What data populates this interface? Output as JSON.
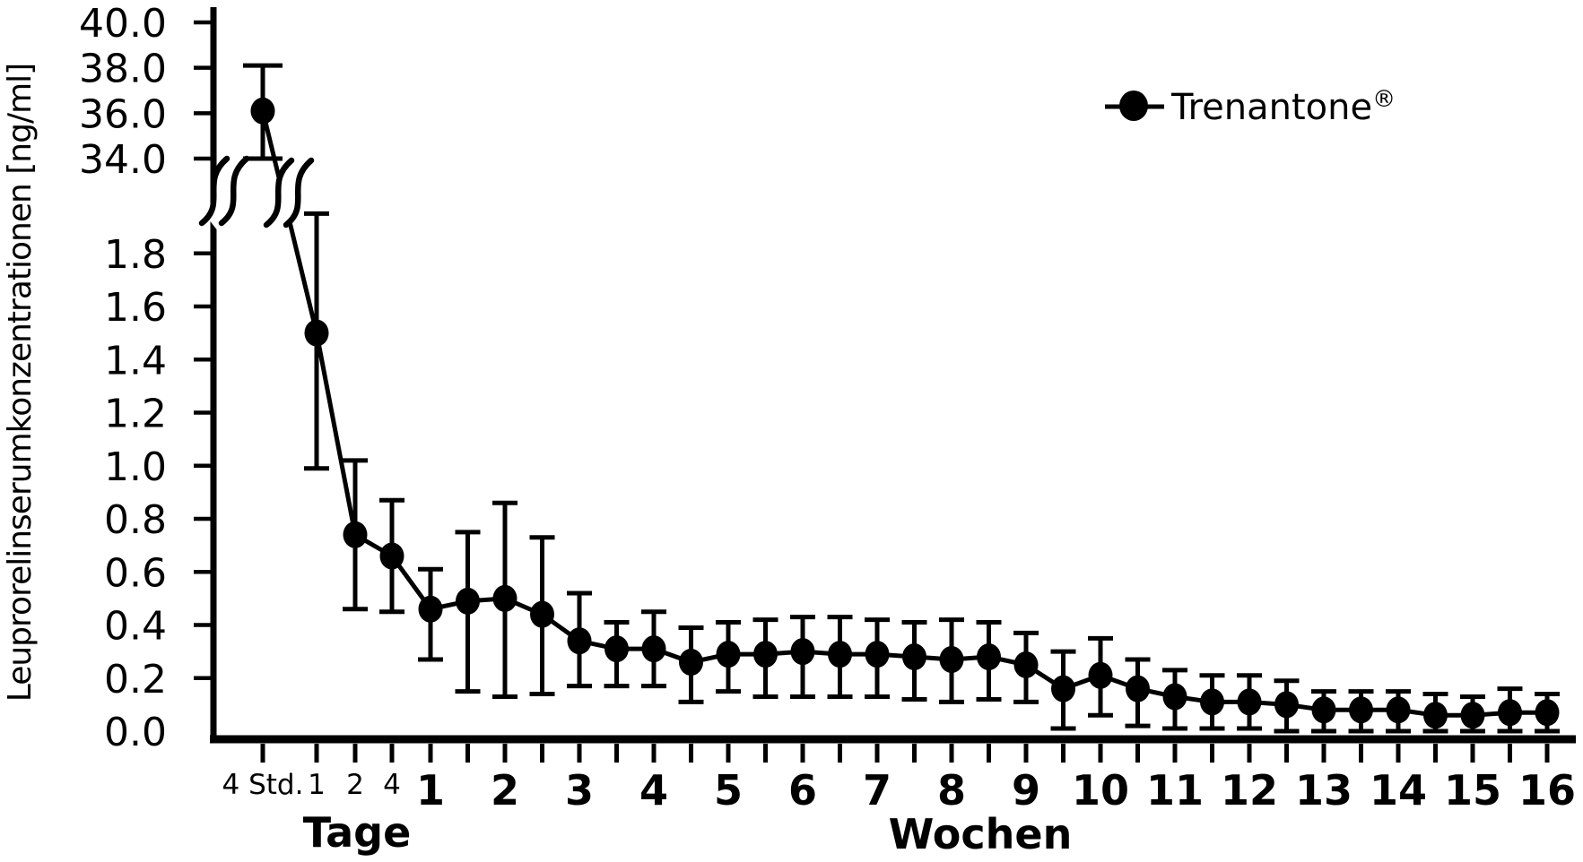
{
  "figure": {
    "background": "#ffffff",
    "ink": "#000000",
    "kind": "pharmacokinetic concentration-time curve with broken y-axis"
  },
  "y_axis": {
    "title": "Leuprorelinserumkonzentrationen [ng/ml]",
    "upper_tick_labels": [
      "40.0",
      "38.0",
      "36.0",
      "34.0"
    ],
    "lower_tick_labels": [
      "1.8",
      "1.6",
      "1.4",
      "1.2",
      "1.0",
      "0.8",
      "0.6",
      "0.4",
      "0.2",
      "0.0"
    ],
    "break_between": [
      2.0,
      34.0
    ]
  },
  "x_axis": {
    "day_section_label": "Tage",
    "week_section_label": "Wochen",
    "day_tick_labels": [
      "4 Std.",
      "1",
      "2",
      "4"
    ],
    "week_tick_labels": [
      "1",
      "2",
      "3",
      "4",
      "5",
      "6",
      "7",
      "8",
      "9",
      "10",
      "11",
      "12",
      "13",
      "14",
      "15",
      "16"
    ]
  },
  "legend": {
    "label": "Trenantone",
    "registered_mark": "®"
  },
  "chart_data": {
    "type": "line",
    "title": "",
    "xlabel_sections": [
      "Tage",
      "Wochen"
    ],
    "ylabel": "Leuprorelinserumkonzentrationen [ng/ml]",
    "y_unit": "ng/ml",
    "grid": false,
    "legend_position": "upper right",
    "marker": "filled-circle",
    "error_bars": "plus-minus, capped",
    "y_axis_segments": {
      "lower_range": [
        0.0,
        2.0
      ],
      "upper_range": [
        34.0,
        40.0
      ]
    },
    "series": [
      {
        "name": "Trenantone®",
        "points": [
          {
            "time": "4 Std.",
            "axis": "days",
            "slot": 0,
            "value": 36.1,
            "lo": 34.0,
            "hi": 38.1
          },
          {
            "time": "1",
            "axis": "days",
            "slot": 1,
            "value": 1.5,
            "lo": 0.99,
            "hi": 1.95
          },
          {
            "time": "2",
            "axis": "days",
            "slot": 2,
            "value": 0.74,
            "lo": 0.46,
            "hi": 1.02
          },
          {
            "time": "4",
            "axis": "days",
            "slot": 3,
            "value": 0.66,
            "lo": 0.45,
            "hi": 0.87
          },
          {
            "time": "1",
            "axis": "weeks",
            "week": 1,
            "value": 0.46,
            "lo": 0.27,
            "hi": 0.61
          },
          {
            "time": "1.5",
            "axis": "weeks",
            "week": 1.5,
            "value": 0.49,
            "lo": 0.15,
            "hi": 0.75
          },
          {
            "time": "2",
            "axis": "weeks",
            "week": 2,
            "value": 0.5,
            "lo": 0.13,
            "hi": 0.86
          },
          {
            "time": "2.5",
            "axis": "weeks",
            "week": 2.5,
            "value": 0.44,
            "lo": 0.14,
            "hi": 0.73
          },
          {
            "time": "3",
            "axis": "weeks",
            "week": 3,
            "value": 0.34,
            "lo": 0.17,
            "hi": 0.52
          },
          {
            "time": "3.5",
            "axis": "weeks",
            "week": 3.5,
            "value": 0.31,
            "lo": 0.17,
            "hi": 0.41
          },
          {
            "time": "4",
            "axis": "weeks",
            "week": 4,
            "value": 0.31,
            "lo": 0.17,
            "hi": 0.45
          },
          {
            "time": "4.5",
            "axis": "weeks",
            "week": 4.5,
            "value": 0.26,
            "lo": 0.11,
            "hi": 0.39
          },
          {
            "time": "5",
            "axis": "weeks",
            "week": 5,
            "value": 0.29,
            "lo": 0.15,
            "hi": 0.41
          },
          {
            "time": "5.5",
            "axis": "weeks",
            "week": 5.5,
            "value": 0.29,
            "lo": 0.13,
            "hi": 0.42
          },
          {
            "time": "6",
            "axis": "weeks",
            "week": 6,
            "value": 0.3,
            "lo": 0.13,
            "hi": 0.43
          },
          {
            "time": "6.5",
            "axis": "weeks",
            "week": 6.5,
            "value": 0.29,
            "lo": 0.13,
            "hi": 0.43
          },
          {
            "time": "7",
            "axis": "weeks",
            "week": 7,
            "value": 0.29,
            "lo": 0.13,
            "hi": 0.42
          },
          {
            "time": "7.5",
            "axis": "weeks",
            "week": 7.5,
            "value": 0.28,
            "lo": 0.12,
            "hi": 0.41
          },
          {
            "time": "8",
            "axis": "weeks",
            "week": 8,
            "value": 0.27,
            "lo": 0.11,
            "hi": 0.42
          },
          {
            "time": "8.5",
            "axis": "weeks",
            "week": 8.5,
            "value": 0.28,
            "lo": 0.12,
            "hi": 0.41
          },
          {
            "time": "9",
            "axis": "weeks",
            "week": 9,
            "value": 0.25,
            "lo": 0.11,
            "hi": 0.37
          },
          {
            "time": "9.5",
            "axis": "weeks",
            "week": 9.5,
            "value": 0.16,
            "lo": 0.01,
            "hi": 0.3
          },
          {
            "time": "10",
            "axis": "weeks",
            "week": 10,
            "value": 0.21,
            "lo": 0.06,
            "hi": 0.35
          },
          {
            "time": "10.5",
            "axis": "weeks",
            "week": 10.5,
            "value": 0.16,
            "lo": 0.02,
            "hi": 0.27
          },
          {
            "time": "11",
            "axis": "weeks",
            "week": 11,
            "value": 0.13,
            "lo": 0.01,
            "hi": 0.23
          },
          {
            "time": "11.5",
            "axis": "weeks",
            "week": 11.5,
            "value": 0.11,
            "lo": 0.01,
            "hi": 0.21
          },
          {
            "time": "12",
            "axis": "weeks",
            "week": 12,
            "value": 0.11,
            "lo": 0.01,
            "hi": 0.21
          },
          {
            "time": "12.5",
            "axis": "weeks",
            "week": 12.5,
            "value": 0.1,
            "lo": 0.0,
            "hi": 0.19
          },
          {
            "time": "13",
            "axis": "weeks",
            "week": 13,
            "value": 0.08,
            "lo": 0.0,
            "hi": 0.15
          },
          {
            "time": "13.5",
            "axis": "weeks",
            "week": 13.5,
            "value": 0.08,
            "lo": 0.0,
            "hi": 0.15
          },
          {
            "time": "14",
            "axis": "weeks",
            "week": 14,
            "value": 0.08,
            "lo": 0.0,
            "hi": 0.15
          },
          {
            "time": "14.5",
            "axis": "weeks",
            "week": 14.5,
            "value": 0.06,
            "lo": 0.0,
            "hi": 0.14
          },
          {
            "time": "15",
            "axis": "weeks",
            "week": 15,
            "value": 0.06,
            "lo": 0.0,
            "hi": 0.13
          },
          {
            "time": "15.5",
            "axis": "weeks",
            "week": 15.5,
            "value": 0.07,
            "lo": 0.0,
            "hi": 0.16
          },
          {
            "time": "16",
            "axis": "weeks",
            "week": 16,
            "value": 0.07,
            "lo": 0.0,
            "hi": 0.14
          }
        ]
      }
    ]
  }
}
